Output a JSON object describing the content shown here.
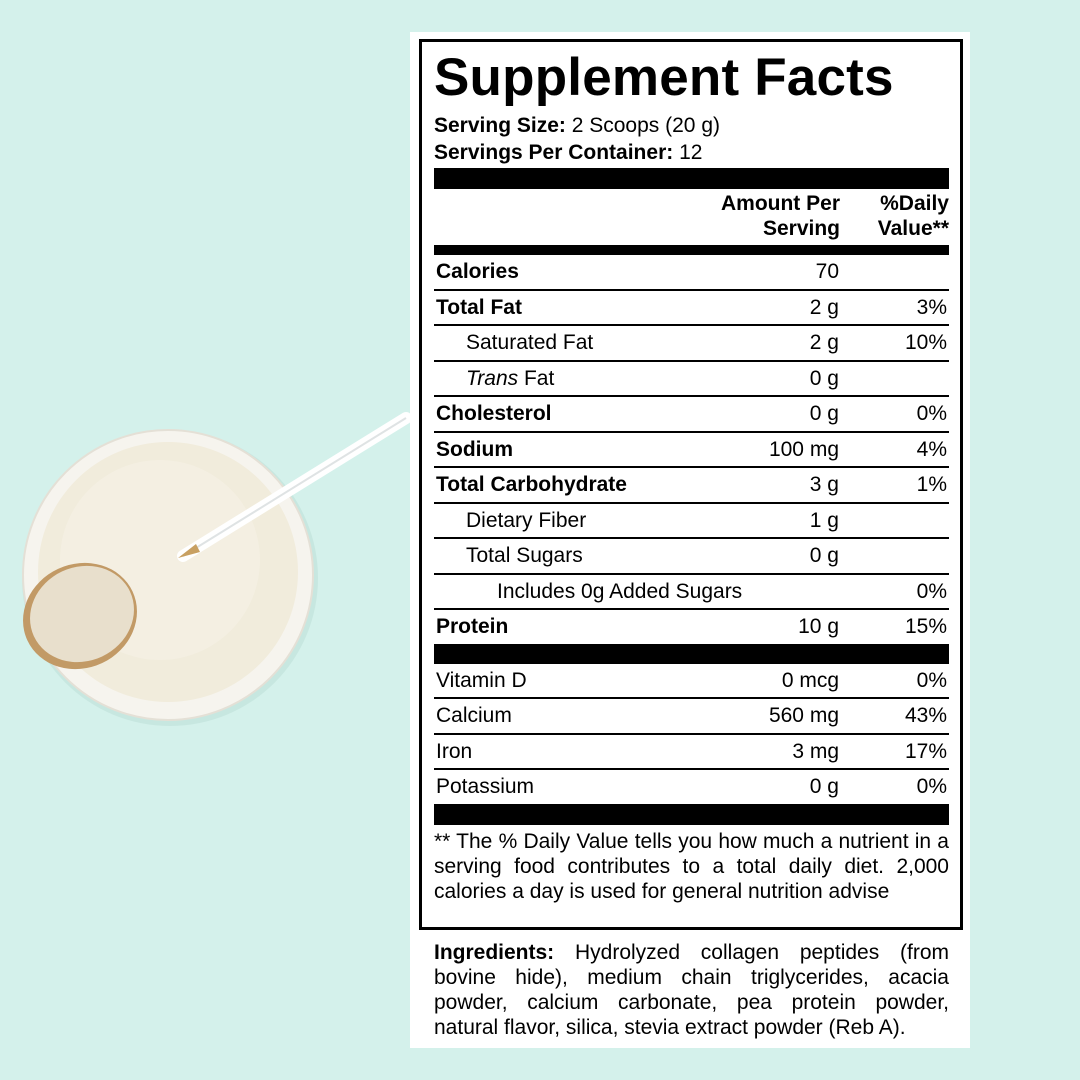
{
  "label": {
    "title": "Supplement Facts",
    "serving_size_label": "Serving Size:",
    "serving_size_value": "2 Scoops (20 g)",
    "servings_per_container_label": "Servings Per Container:",
    "servings_per_container_value": "12",
    "header_amount": [
      "Amount Per",
      "Serving"
    ],
    "header_daily": [
      "%Daily",
      "Value**"
    ],
    "rows": [
      {
        "name": "Calories",
        "amount": "70",
        "dv": ""
      },
      {
        "name": "Total Fat",
        "amount": "2 g",
        "dv": "3%"
      },
      {
        "name": "Saturated Fat",
        "amount": "2 g",
        "dv": "10%"
      },
      {
        "name_italic": "Trans",
        "name": " Fat",
        "amount": "0 g",
        "dv": ""
      },
      {
        "name": "Cholesterol",
        "amount": "0 g",
        "dv": "0%"
      },
      {
        "name": "Sodium",
        "amount": "100 mg",
        "dv": "4%"
      },
      {
        "name": "Total Carbohydrate",
        "amount": "3 g",
        "dv": "1%"
      },
      {
        "name": "Dietary Fiber",
        "amount": "1 g",
        "dv": ""
      },
      {
        "name": "Total Sugars",
        "amount": "0 g",
        "dv": ""
      },
      {
        "name": "Includes 0g Added Sugars",
        "amount": "",
        "dv": "0%"
      },
      {
        "name": "Protein",
        "amount": "10 g",
        "dv": "15%"
      }
    ],
    "vitamins": [
      {
        "name": "Vitamin D",
        "amount": "0 mcg",
        "dv": "0%"
      },
      {
        "name": "Calcium",
        "amount": "560 mg",
        "dv": "43%"
      },
      {
        "name": "Iron",
        "amount": "3 mg",
        "dv": "17%"
      },
      {
        "name": "Potassium",
        "amount": "0 g",
        "dv": "0%"
      }
    ],
    "footnote": "** The % Daily Value tells you how much a nutrient in a serving food contributes to a total daily diet. 2,000 calories a day is used for general nutrition advise"
  },
  "ingredients": {
    "label": "Ingredients:",
    "text": " Hydrolyzed collagen peptides (from bovine hide), medium chain triglycerides, acacia powder, calcium carbonate, pea protein powder, natural flavor, silica, stevia extract powder (Reb A)."
  },
  "colors": {
    "background": "#d4f1eb",
    "panel": "#ffffff",
    "ink": "#000000"
  }
}
